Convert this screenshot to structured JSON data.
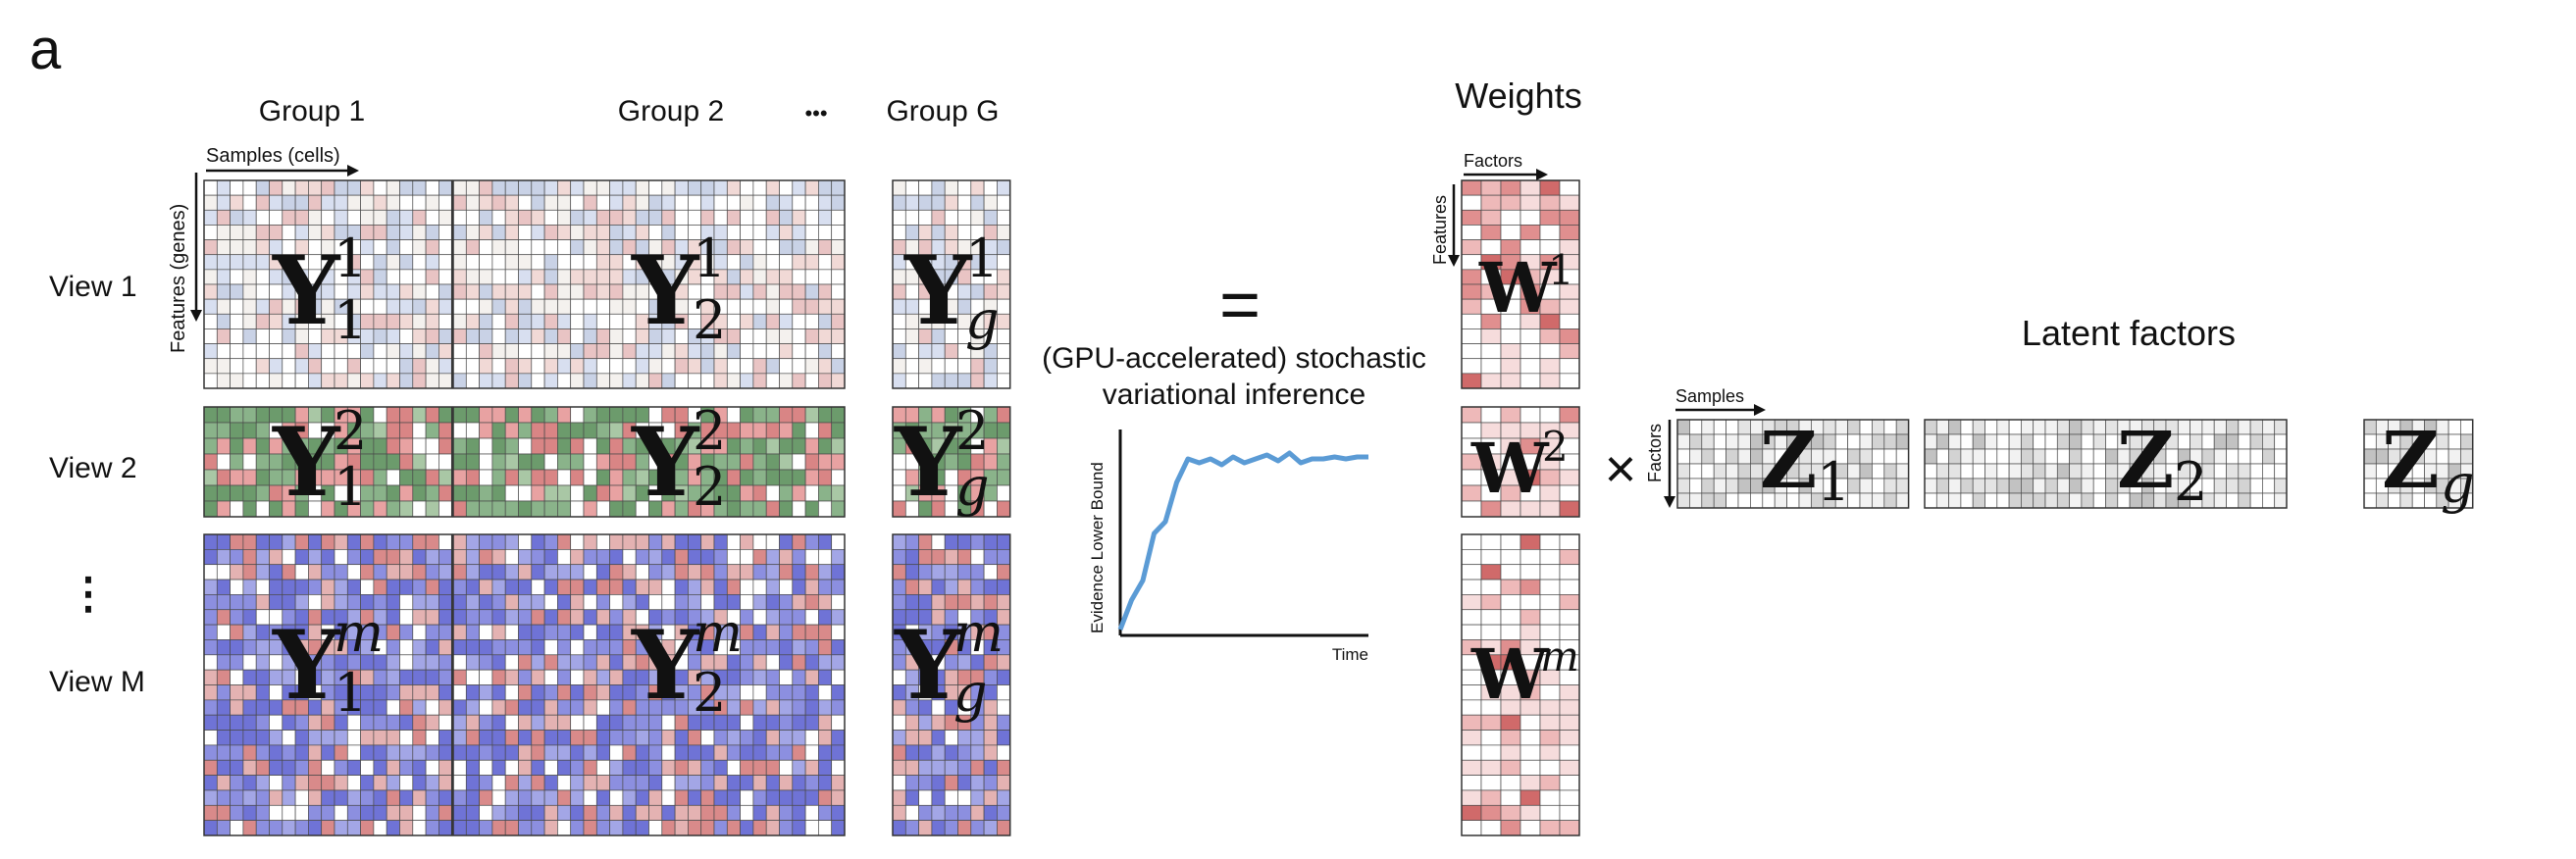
{
  "panel_label": "a",
  "groups": {
    "group1": "Group 1",
    "group2": "Group 2",
    "ellipsis": "•••",
    "groupG": "Group G"
  },
  "samples_axis": "Samples (cells)",
  "features_axis": "Features (genes)",
  "views": {
    "view1": "View 1",
    "view2": "View 2",
    "ellipsis": "⋮",
    "viewM": "View M"
  },
  "data_matrix": {
    "symbol": "Y",
    "superscripts": {
      "view1": "1",
      "view2": "2",
      "viewM": "m"
    },
    "subscripts": {
      "group1": "1",
      "group2": "2",
      "groupG": "g"
    },
    "palettes": {
      "view1": [
        "#ffffff",
        "#f4f1ee",
        "#e9c4c4",
        "#c9d2e6",
        "#f1d9d6",
        "#d8dff0"
      ],
      "view2": [
        "#6c9b6c",
        "#8ab38a",
        "#e8a2a2",
        "#d98585",
        "#ffffff",
        "#a9c7a5"
      ],
      "viewM": [
        "#6f73d6",
        "#8c8fe0",
        "#d98a8a",
        "#e4b2b2",
        "#ffffff",
        "#a3a6e6"
      ]
    }
  },
  "equals": "=",
  "inference": {
    "line1": "(GPU-accelerated) stochastic",
    "line2": "variational inference"
  },
  "chart_data": {
    "type": "line",
    "title": "",
    "xlabel": "Time",
    "ylabel": "Evidence Lower Bound",
    "x": [
      0,
      1,
      2,
      3,
      4,
      5,
      6,
      7,
      8,
      9,
      10,
      11,
      12,
      13,
      14,
      15,
      16,
      17,
      18,
      19,
      20,
      21,
      22
    ],
    "series": [
      {
        "values": [
          0.03,
          0.18,
          0.28,
          0.52,
          0.58,
          0.78,
          0.9,
          0.88,
          0.9,
          0.87,
          0.91,
          0.88,
          0.9,
          0.92,
          0.89,
          0.93,
          0.88,
          0.9,
          0.9,
          0.91,
          0.9,
          0.91,
          0.91
        ],
        "color": "#5b9bd5"
      }
    ],
    "ylim": [
      0,
      1.05
    ],
    "xlim": [
      0,
      22
    ],
    "ticks": false
  },
  "weights": {
    "title": "Weights",
    "factors_axis": "Factors",
    "features_axis": "Features",
    "symbol": "W",
    "superscripts": {
      "view1": "1",
      "view2": "2",
      "viewM": "m"
    },
    "palette": [
      "#ffffff",
      "#ffffff",
      "#ffffff",
      "#f6dcdc",
      "#eeb9b9",
      "#e08f8f",
      "#d06a6a"
    ]
  },
  "times": "×",
  "latent": {
    "title": "Latent factors",
    "samples_axis": "Samples",
    "factors_axis": "Factors",
    "symbol": "Z",
    "subscripts": {
      "group1": "1",
      "group2": "2",
      "groupG": "g"
    },
    "palette": [
      "#ffffff",
      "#f2f2f2",
      "#e4e4e4",
      "#d3d3d3",
      "#c2c2c2"
    ]
  }
}
